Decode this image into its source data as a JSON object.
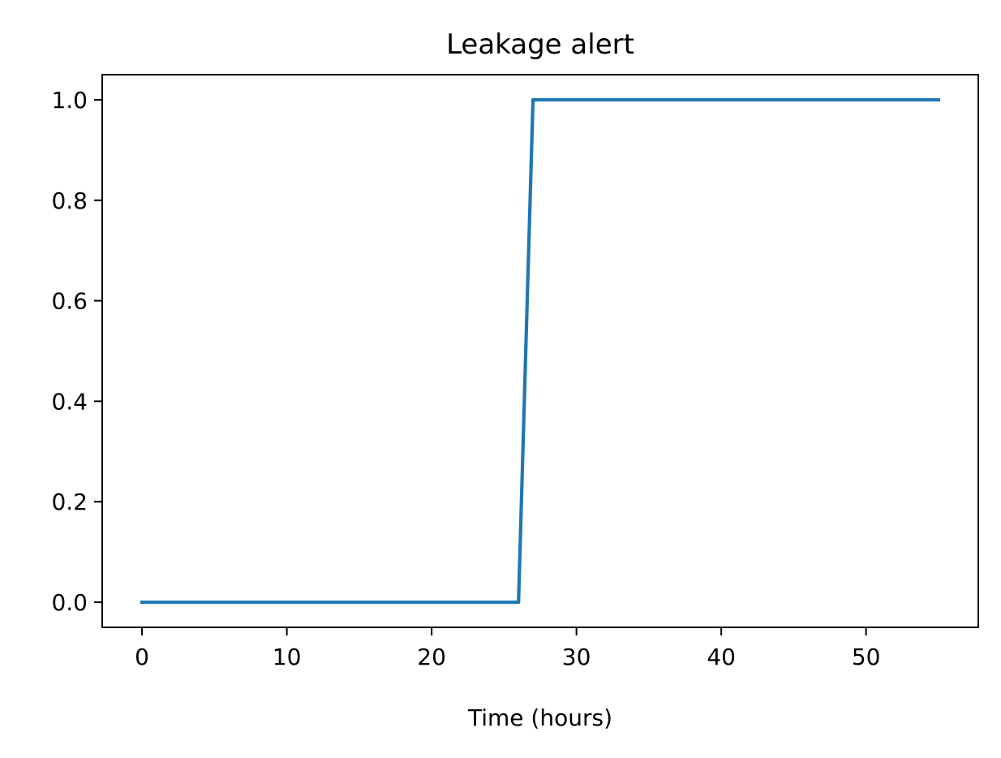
{
  "chart_data": {
    "type": "line",
    "title": "Leakage alert",
    "xlabel": "Time (hours)",
    "ylabel": "",
    "xlim": [
      -2.75,
      57.75
    ],
    "ylim": [
      -0.05,
      1.05
    ],
    "xticks": [
      0,
      10,
      20,
      30,
      40,
      50
    ],
    "xtick_labels": [
      "0",
      "10",
      "20",
      "30",
      "40",
      "50"
    ],
    "yticks": [
      0.0,
      0.2,
      0.4,
      0.6,
      0.8,
      1.0
    ],
    "ytick_labels": [
      "0.0",
      "0.2",
      "0.4",
      "0.6",
      "0.8",
      "1.0"
    ],
    "grid": false,
    "series": [
      {
        "color": "#1f77b4",
        "x": [
          0,
          26,
          27,
          55
        ],
        "y": [
          0,
          0,
          1,
          1
        ]
      }
    ]
  }
}
